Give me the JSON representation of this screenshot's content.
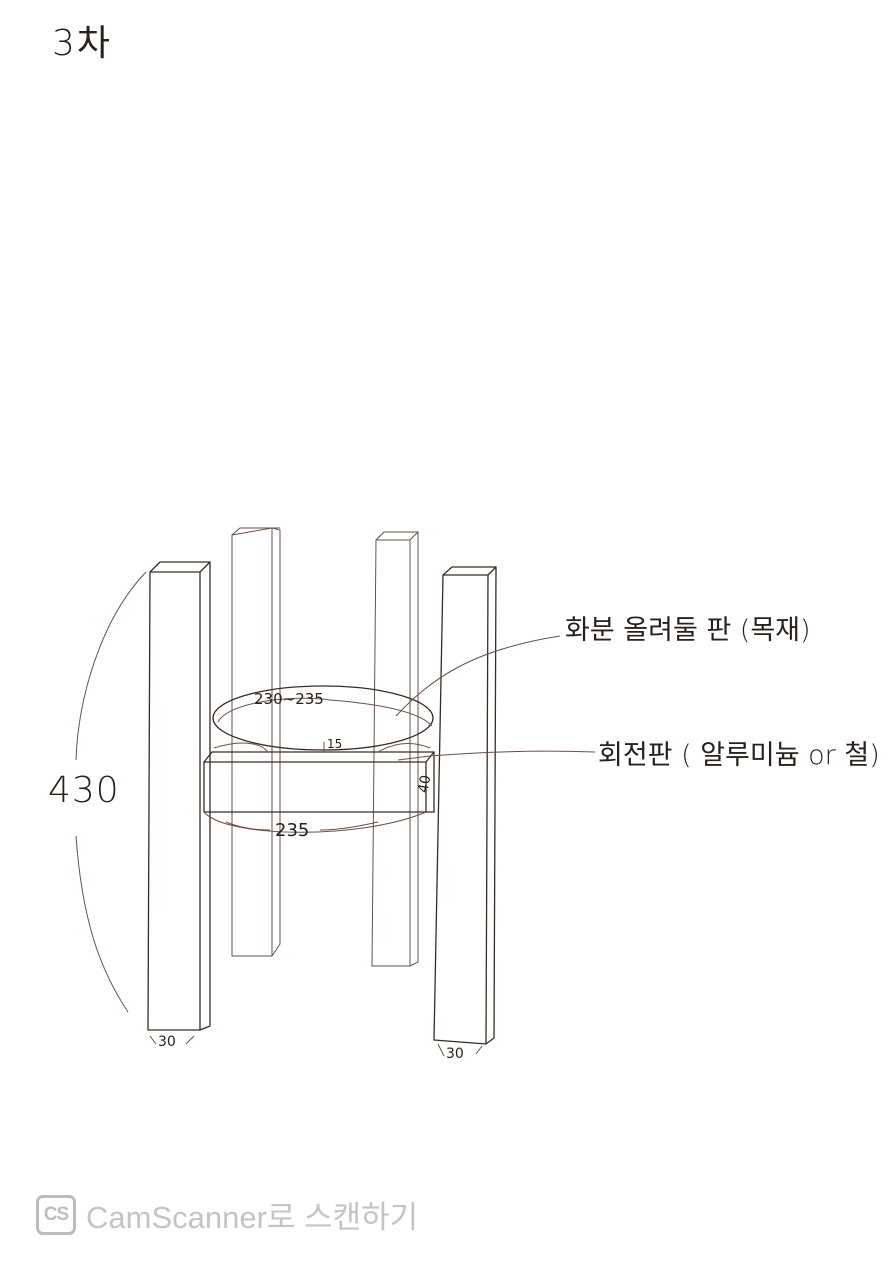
{
  "title": "3차",
  "labels": {
    "pot_plate": "화분 올려둘 판 (목재)",
    "turntable": "회전판 ( 알루미늄 or 철)"
  },
  "dimensions": {
    "height": "430",
    "pot_plate_diameter": "230~235",
    "gap": "15",
    "turntable_thickness": "40",
    "plate_width": "235",
    "leg_left": "30",
    "leg_right": "30"
  },
  "watermark": {
    "logo": "CS",
    "text": "CamScanner로 스캔하기"
  }
}
